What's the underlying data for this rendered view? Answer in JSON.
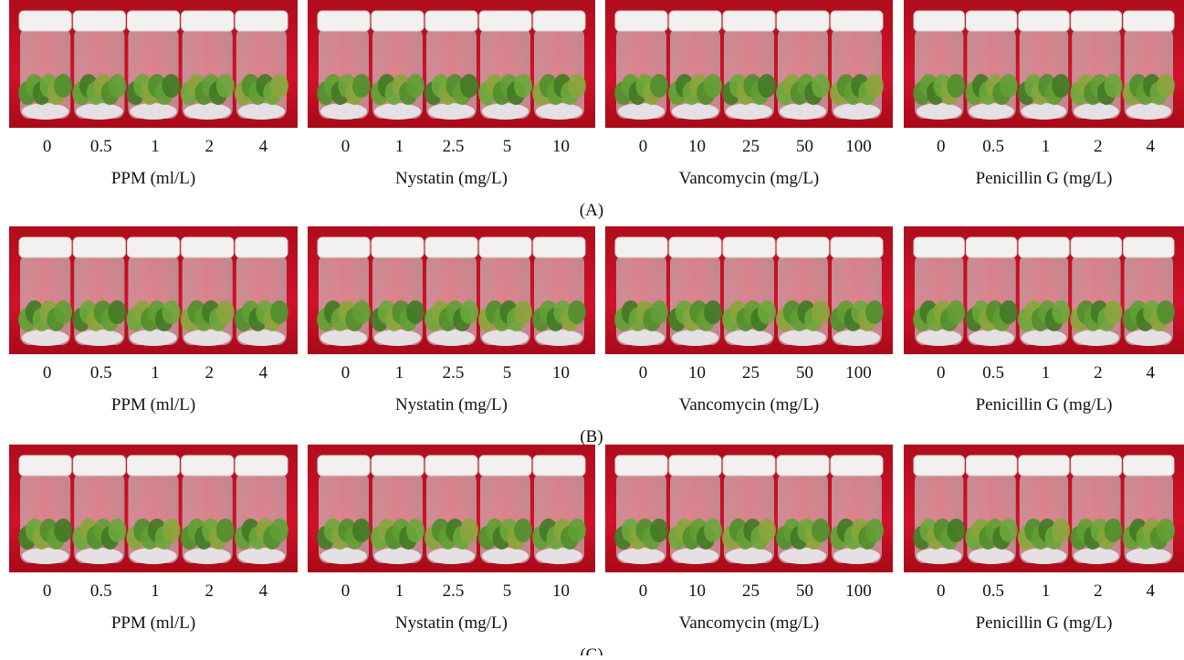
{
  "figure": {
    "rows": [
      {
        "label": "(A)",
        "panels": [
          {
            "concentrations": [
              "0",
              "0.5",
              "1",
              "2",
              "4"
            ],
            "caption": "PPM (ml/L)"
          },
          {
            "concentrations": [
              "0",
              "1",
              "2.5",
              "5",
              "10"
            ],
            "caption": "Nystatin (mg/L)"
          },
          {
            "concentrations": [
              "0",
              "10",
              "25",
              "50",
              "100"
            ],
            "caption": "Vancomycin (mg/L)"
          },
          {
            "concentrations": [
              "0",
              "0.5",
              "1",
              "2",
              "4"
            ],
            "caption": "Penicillin G (mg/L)"
          }
        ]
      },
      {
        "label": "(B)",
        "panels": [
          {
            "concentrations": [
              "0",
              "0.5",
              "1",
              "2",
              "4"
            ],
            "caption": "PPM (ml/L)"
          },
          {
            "concentrations": [
              "0",
              "1",
              "2.5",
              "5",
              "10"
            ],
            "caption": "Nystatin (mg/L)"
          },
          {
            "concentrations": [
              "0",
              "10",
              "25",
              "50",
              "100"
            ],
            "caption": "Vancomycin (mg/L)"
          },
          {
            "concentrations": [
              "0",
              "0.5",
              "1",
              "2",
              "4"
            ],
            "caption": "Penicillin G (mg/L)"
          }
        ]
      },
      {
        "label": "(C)",
        "panels": [
          {
            "concentrations": [
              "0",
              "0.5",
              "1",
              "2",
              "4"
            ],
            "caption": "PPM (ml/L)"
          },
          {
            "concentrations": [
              "0",
              "1",
              "2.5",
              "5",
              "10"
            ],
            "caption": "Nystatin (mg/L)"
          },
          {
            "concentrations": [
              "0",
              "10",
              "25",
              "50",
              "100"
            ],
            "caption": "Vancomycin (mg/L)"
          },
          {
            "concentrations": [
              "0",
              "0.5",
              "1",
              "2",
              "4"
            ],
            "caption": "Penicillin G (mg/L)"
          }
        ]
      }
    ]
  }
}
